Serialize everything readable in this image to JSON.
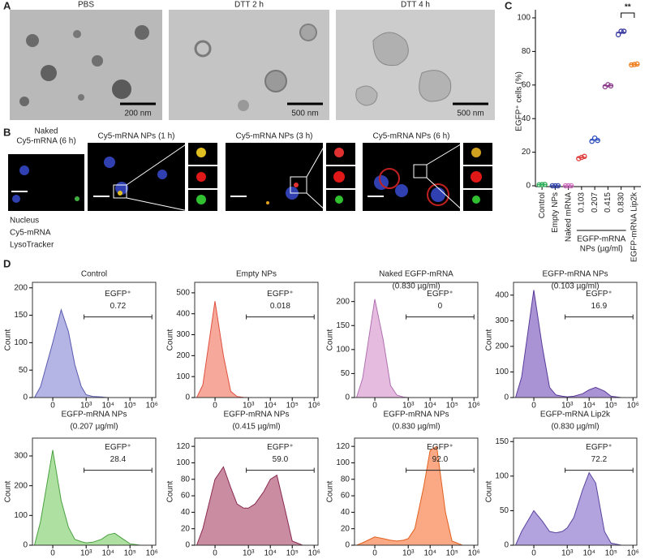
{
  "panel_labels": [
    "A",
    "B",
    "C",
    "D"
  ],
  "panel_a": {
    "images": [
      {
        "label": "PBS",
        "scale_bar": "200 nm"
      },
      {
        "label": "DTT 2 h",
        "scale_bar": "500 nm"
      },
      {
        "label": "DTT 4 h",
        "scale_bar": "500 nm"
      }
    ]
  },
  "panel_b": {
    "titles": [
      [
        "Naked",
        "Cy5-mRNA (6 h)"
      ],
      [
        "Cy5-mRNA NPs (1 h)"
      ],
      [
        "Cy5-mRNA NPs (3 h)"
      ],
      [
        "Cy5-mRNA NPs (6 h)"
      ]
    ],
    "legend": [
      {
        "label": "Nucleus",
        "color": "#2f3fb8"
      },
      {
        "label": "Cy5-mRNA",
        "color": "#e01818"
      },
      {
        "label": "LysoTracker",
        "color": "#3aa83a"
      }
    ]
  },
  "chart_data": [
    {
      "type": "dot",
      "ylabel": "EGFP⁺ cells (%)",
      "categories": [
        "Control",
        "Empty NPs",
        "Naked mRNA",
        "0.103",
        "0.207",
        "0.415",
        "0.830",
        "EGFP-mRNA Lip2k"
      ],
      "group_label": [
        "EGFP-mRNA",
        "NPs (µg/ml)"
      ],
      "colors": [
        "#2fae5a",
        "#3a4bb0",
        "#d070c0",
        "#e04040",
        "#3050c0",
        "#8a3a8a",
        "#3a3aa0",
        "#f08020"
      ],
      "values": [
        [
          0.6,
          0.7,
          0.8
        ],
        [
          0.01,
          0.02,
          0.03
        ],
        [
          0,
          0,
          0
        ],
        [
          16.2,
          16.9,
          17.5
        ],
        [
          26.5,
          28.4,
          27.0
        ],
        [
          59.0,
          60.2,
          59.5
        ],
        [
          90.0,
          92.0,
          92.0
        ],
        [
          72.0,
          72.2,
          72.5
        ]
      ],
      "means": [
        0.7,
        0.02,
        0,
        16.9,
        27.3,
        59.6,
        91.3,
        72.2
      ],
      "annotation": "**",
      "ylim": [
        0,
        100
      ],
      "yticks": [
        0,
        20,
        40,
        60,
        80,
        100
      ]
    },
    {
      "type": "area",
      "title": [
        "Control"
      ],
      "title_color": "#4a5ab8",
      "color": "#5a5ab0",
      "fill": "#a8a8e0",
      "ylabel": "Count",
      "xscale": "biexponential",
      "x": [
        -200,
        -100,
        0,
        60,
        150,
        300,
        600,
        1000,
        2000,
        5000,
        10000,
        20000,
        50000,
        100000,
        300000
      ],
      "values": [
        0,
        20,
        100,
        160,
        120,
        60,
        20,
        5,
        2,
        1,
        0,
        0,
        0,
        0,
        0
      ],
      "gate_name": "EGFP⁺",
      "gate_value": 0.72,
      "gate_x": [
        800,
        1000000
      ],
      "xlim": [
        -250,
        1500000
      ],
      "xticks": [
        {
          "value": 0,
          "label": "0"
        },
        {
          "value": 1000,
          "label": "10³"
        },
        {
          "value": 10000,
          "label": "10⁴"
        },
        {
          "value": 100000,
          "label": "10⁵"
        },
        {
          "value": 1000000,
          "label": "10⁶"
        }
      ],
      "ylim": [
        0,
        210
      ],
      "yticks": [
        0,
        50,
        100,
        150,
        200
      ]
    },
    {
      "type": "area",
      "title": [
        "Empty NPs"
      ],
      "title_color": "#e0403a",
      "color": "#e05040",
      "fill": "#f59a88",
      "ylabel": "Count",
      "xscale": "biexponential",
      "x": [
        -200,
        -100,
        0,
        60,
        150,
        300,
        600,
        1000,
        2000,
        5000,
        10000,
        20000,
        50000,
        100000,
        300000
      ],
      "values": [
        0,
        60,
        460,
        200,
        30,
        5,
        1,
        0,
        0,
        0,
        0,
        0,
        0,
        0,
        0
      ],
      "gate_name": "EGFP⁺",
      "gate_value": 0.018,
      "gate_x": [
        800,
        1000000
      ],
      "xlim": [
        -250,
        1500000
      ],
      "xticks": [
        {
          "value": 0,
          "label": "0"
        },
        {
          "value": 1000,
          "label": "10³"
        },
        {
          "value": 10000,
          "label": "10⁴"
        },
        {
          "value": 100000,
          "label": "10⁵"
        },
        {
          "value": 1000000,
          "label": "10⁶"
        }
      ],
      "ylim": [
        0,
        550
      ],
      "yticks": [
        0,
        100,
        200,
        300,
        400,
        500
      ]
    },
    {
      "type": "area",
      "title": [
        "Naked EGFP-mRNA",
        "(0.830 µg/ml)"
      ],
      "title_color": "#c080c0",
      "color": "#b070b0",
      "fill": "#e0b0da",
      "ylabel": "Count",
      "xscale": "biexponential",
      "x": [
        -200,
        -100,
        0,
        60,
        150,
        300,
        600,
        1000,
        2000,
        5000,
        10000,
        20000,
        50000,
        100000,
        300000
      ],
      "values": [
        0,
        40,
        205,
        120,
        25,
        5,
        1,
        0,
        0,
        0,
        0,
        0,
        0,
        0,
        0
      ],
      "gate_name": "EGFP⁺",
      "gate_value": 0,
      "gate_x": [
        800,
        1000000
      ],
      "xlim": [
        -250,
        1500000
      ],
      "xticks": [
        {
          "value": 0,
          "label": "0"
        },
        {
          "value": 1000,
          "label": "10³"
        },
        {
          "value": 10000,
          "label": "10⁴"
        },
        {
          "value": 100000,
          "label": "10⁵"
        },
        {
          "value": 1000000,
          "label": "10⁶"
        }
      ],
      "ylim": [
        0,
        240
      ],
      "yticks": [
        0,
        50,
        100,
        150,
        200
      ]
    },
    {
      "type": "area",
      "title": [
        "EGFP-mRNA NPs",
        "(0.103 µg/ml)"
      ],
      "title_color": "#5a3a9a",
      "color": "#5a3a9a",
      "fill": "#9a80cc",
      "ylabel": "Count",
      "xscale": "biexponential",
      "x": [
        -200,
        -100,
        0,
        60,
        150,
        300,
        600,
        1000,
        2000,
        5000,
        10000,
        20000,
        50000,
        100000,
        300000
      ],
      "values": [
        0,
        80,
        420,
        200,
        40,
        10,
        5,
        3,
        5,
        15,
        30,
        40,
        25,
        5,
        0
      ],
      "gate_name": "EGFP⁺",
      "gate_value": 16.9,
      "gate_x": [
        800,
        1000000
      ],
      "xlim": [
        -250,
        1500000
      ],
      "xticks": [
        {
          "value": 0,
          "label": "0"
        },
        {
          "value": 1000,
          "label": "10³"
        },
        {
          "value": 10000,
          "label": "10⁴"
        },
        {
          "value": 100000,
          "label": "10⁵"
        },
        {
          "value": 1000000,
          "label": "10⁶"
        }
      ],
      "ylim": [
        0,
        450
      ],
      "yticks": [
        0,
        100,
        200,
        300,
        400
      ]
    },
    {
      "type": "area",
      "title": [
        "EGFP-mRNA NPs",
        "(0.207 µg/ml)"
      ],
      "title_color": "#4ab040",
      "color": "#4aa040",
      "fill": "#a0dc90",
      "ylabel": "Count",
      "xscale": "biexponential",
      "x": [
        -200,
        -100,
        0,
        60,
        150,
        300,
        600,
        1000,
        2000,
        5000,
        10000,
        20000,
        50000,
        100000,
        300000
      ],
      "values": [
        0,
        80,
        320,
        150,
        60,
        20,
        12,
        8,
        10,
        20,
        35,
        40,
        20,
        5,
        0
      ],
      "gate_name": "EGFP⁺",
      "gate_value": 28.4,
      "gate_x": [
        800,
        1000000
      ],
      "xlim": [
        -250,
        1500000
      ],
      "xticks": [
        {
          "value": 0,
          "label": "0"
        },
        {
          "value": 1000,
          "label": "10³"
        },
        {
          "value": 10000,
          "label": "10⁴"
        },
        {
          "value": 100000,
          "label": "10⁵"
        },
        {
          "value": 1000000,
          "label": "10⁶"
        }
      ],
      "ylim": [
        0,
        360
      ],
      "yticks": [
        0,
        100,
        200,
        300
      ]
    },
    {
      "type": "area",
      "title": [
        "EGFP-mRNA NPs",
        "(0.415 µg/ml)"
      ],
      "title_color": "#8a1a4a",
      "color": "#8a2a50",
      "fill": "#c07890",
      "ylabel": "Count",
      "xscale": "biexponential",
      "x": [
        -200,
        -100,
        0,
        60,
        150,
        300,
        600,
        1000,
        2000,
        5000,
        10000,
        20000,
        50000,
        100000,
        300000
      ],
      "values": [
        0,
        20,
        80,
        95,
        70,
        50,
        45,
        45,
        50,
        65,
        80,
        85,
        40,
        5,
        0
      ],
      "gate_name": "EGFP⁺",
      "gate_value": 59,
      "gate_value_label": "59.0",
      "gate_x": [
        800,
        1000000
      ],
      "xlim": [
        -250,
        1500000
      ],
      "xticks": [
        {
          "value": 0,
          "label": "0"
        },
        {
          "value": 1000,
          "label": "10³"
        },
        {
          "value": 10000,
          "label": "10⁴"
        },
        {
          "value": 100000,
          "label": "10⁵"
        },
        {
          "value": 1000000,
          "label": "10⁶"
        }
      ],
      "ylim": [
        0,
        130
      ],
      "yticks": [
        0,
        20,
        40,
        60,
        80,
        100,
        120
      ]
    },
    {
      "type": "area",
      "title": [
        "EGFP-mRNA NPs",
        "(0.830 µg/ml)"
      ],
      "title_color": "#f07030",
      "color": "#e06020",
      "fill": "#fa9a70",
      "ylabel": "Count",
      "xscale": "biexponential",
      "x": [
        -200,
        -100,
        0,
        60,
        150,
        300,
        600,
        1000,
        2000,
        5000,
        10000,
        20000,
        50000,
        100000,
        300000
      ],
      "values": [
        0,
        3,
        10,
        8,
        6,
        5,
        6,
        8,
        20,
        70,
        115,
        120,
        40,
        5,
        0
      ],
      "gate_name": "EGFP⁺",
      "gate_value": 92,
      "gate_value_label": "92.0",
      "gate_x": [
        800,
        1000000
      ],
      "xlim": [
        -250,
        1500000
      ],
      "xticks": [
        {
          "value": 0,
          "label": "0"
        },
        {
          "value": 1000,
          "label": "10³"
        },
        {
          "value": 10000,
          "label": "10⁴"
        },
        {
          "value": 100000,
          "label": "10⁵"
        },
        {
          "value": 1000000,
          "label": "10⁶"
        }
      ],
      "ylim": [
        0,
        130
      ],
      "yticks": [
        0,
        20,
        40,
        60,
        80,
        100,
        120
      ]
    },
    {
      "type": "area",
      "title": [
        "EGFP-mRNA Lip2k",
        "(0.830 µg/ml)"
      ],
      "title_color": "#9a8ac8",
      "color": "#5a44a0",
      "fill": "#a592d8",
      "ylabel": "Count",
      "xscale": "biexponential",
      "x": [
        -200,
        -100,
        0,
        60,
        150,
        300,
        600,
        1000,
        2000,
        5000,
        10000,
        20000,
        50000,
        100000,
        300000
      ],
      "values": [
        0,
        20,
        50,
        35,
        20,
        18,
        20,
        25,
        40,
        80,
        105,
        90,
        20,
        3,
        0
      ],
      "gate_name": "EGFP⁺",
      "gate_value": 72.2,
      "gate_x": [
        800,
        1000000
      ],
      "xlim": [
        -250,
        1500000
      ],
      "xticks": [
        {
          "value": 0,
          "label": "0"
        },
        {
          "value": 1000,
          "label": "10³"
        },
        {
          "value": 10000,
          "label": "10⁴"
        },
        {
          "value": 100000,
          "label": "10⁵"
        },
        {
          "value": 1000000,
          "label": "10⁶"
        }
      ],
      "ylim": [
        0,
        155
      ],
      "yticks": [
        0,
        50,
        100,
        150
      ]
    }
  ]
}
